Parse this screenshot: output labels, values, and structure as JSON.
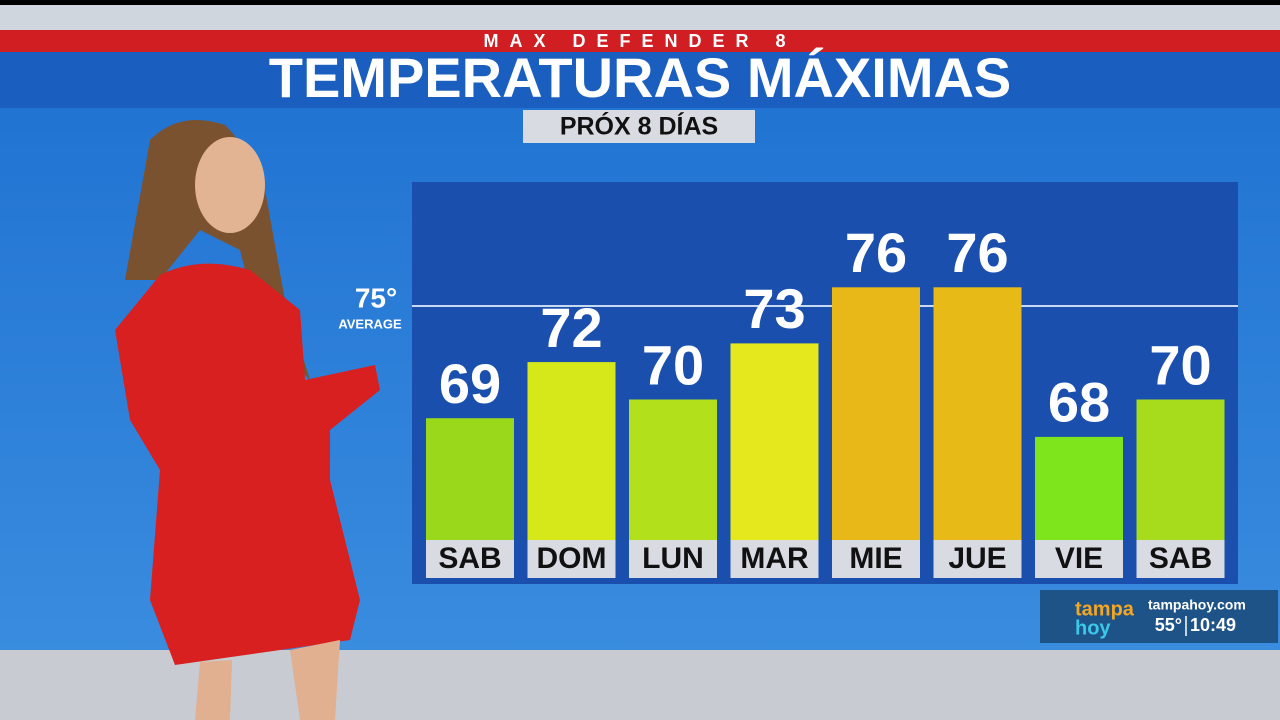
{
  "chart_data": {
    "type": "bar",
    "kicker": "MAX DEFENDER 8",
    "title": "TEMPERATURAS MÁXIMAS",
    "subtitle": "PRÓX 8 DÍAS",
    "categories": [
      "SAB",
      "DOM",
      "LUN",
      "MAR",
      "MIE",
      "JUE",
      "VIE",
      "SAB"
    ],
    "values": [
      69,
      72,
      70,
      73,
      76,
      76,
      68,
      70
    ],
    "colors": [
      "#9ad81c",
      "#d6e81a",
      "#b2e01a",
      "#e4e81c",
      "#e8b818",
      "#e8ba18",
      "#7ee41c",
      "#a6dc1c"
    ],
    "reference": {
      "value": 75,
      "label": "75°",
      "text": "AVERAGE"
    }
  },
  "overlay": {
    "brand_top": "tampa",
    "brand_bottom": "hoy",
    "site": "tampahoy.com",
    "temperature": "55°",
    "time": "10:49"
  }
}
